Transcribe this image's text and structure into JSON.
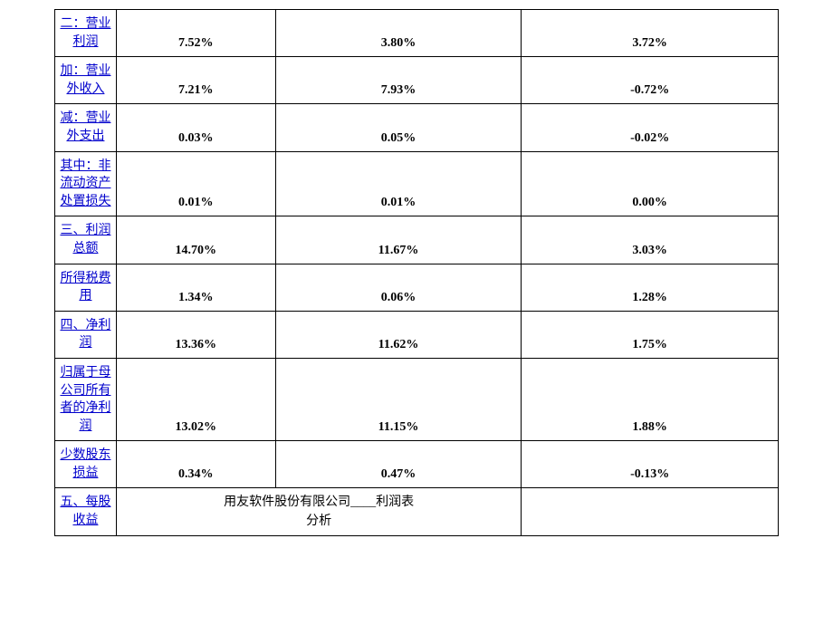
{
  "table": {
    "type": "table",
    "background_color": "#ffffff",
    "border_color": "#000000",
    "border_width": 1.5,
    "link_color": "#0000cc",
    "label_fontsize": 14,
    "value_fontsize": 14,
    "value_font_weight": "bold",
    "column_widths": [
      "8.5%",
      "22%",
      "34%",
      "35.5%"
    ],
    "rows": [
      {
        "label": "二：营业利润",
        "values": [
          "7.52%",
          "3.80%",
          "3.72%"
        ]
      },
      {
        "label": "加：营业外收入",
        "values": [
          "7.21%",
          "7.93%",
          "-0.72%"
        ]
      },
      {
        "label": "减：营业外支出",
        "values": [
          "0.03%",
          "0.05%",
          "-0.02%"
        ]
      },
      {
        "label": "其中：非流动资产处置损失",
        "values": [
          "0.01%",
          "0.01%",
          "0.00%"
        ]
      },
      {
        "label": "三、利润总额",
        "values": [
          "14.70%",
          "11.67%",
          "3.03%"
        ]
      },
      {
        "label": "所得税费用",
        "values": [
          "1.34%",
          "0.06%",
          "1.28%"
        ]
      },
      {
        "label": "四、净利润",
        "values": [
          "13.36%",
          "11.62%",
          "1.75%"
        ]
      },
      {
        "label": "归属于母公司所有者的净利润",
        "values": [
          "13.02%",
          "11.15%",
          "1.88%"
        ]
      },
      {
        "label": "少数股东损益",
        "values": [
          "0.34%",
          "0.47%",
          "-0.13%"
        ]
      }
    ],
    "footer_row": {
      "label": "五、每股收益",
      "footer_text_line1": "用友软件股份有限公司____利润表",
      "footer_text_line2": "分析"
    }
  }
}
